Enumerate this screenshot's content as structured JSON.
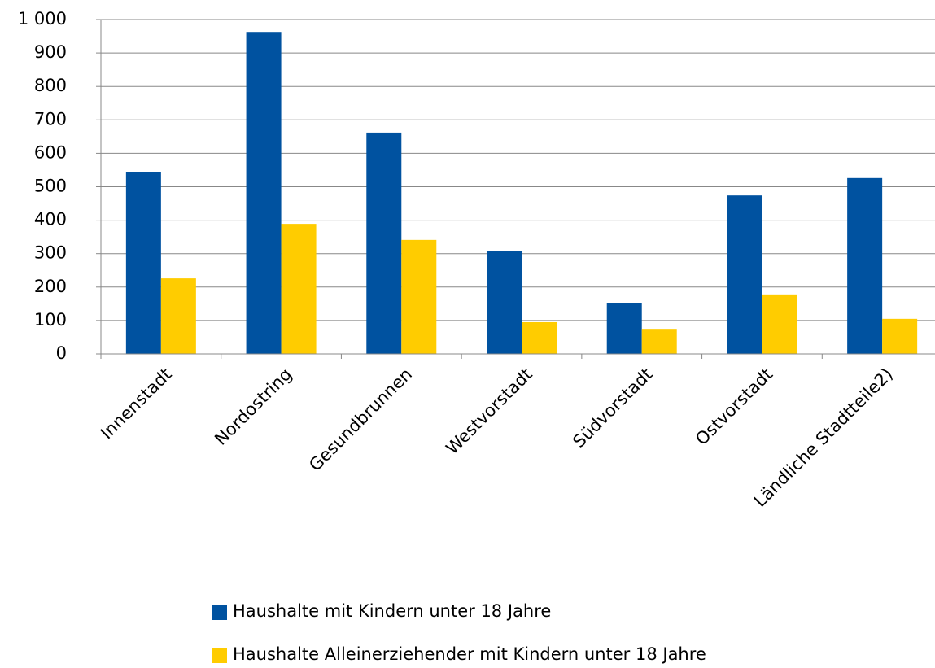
{
  "chart_data": {
    "type": "bar",
    "categories": [
      "Innenstadt",
      "Nordostring",
      "Gesundbrunnen",
      "Westvorstadt",
      "Südvorstadt",
      "Ostvorstadt",
      "Ländliche Stadtteile2)"
    ],
    "series": [
      {
        "name": "Haushalte mit Kindern unter 18 Jahre",
        "color": "#0052a0",
        "values": [
          543,
          963,
          662,
          307,
          153,
          474,
          526
        ]
      },
      {
        "name": "Haushalte Alleinerziehender mit Kindern unter 18 Jahre",
        "color": "#ffcc00",
        "values": [
          226,
          389,
          341,
          95,
          75,
          178,
          105
        ]
      }
    ],
    "ylim": [
      0,
      1000
    ],
    "yticks": [
      0,
      100,
      200,
      300,
      400,
      500,
      600,
      700,
      800,
      900,
      {
        "value": 1000,
        "label": "1 000"
      }
    ],
    "grid": true
  }
}
